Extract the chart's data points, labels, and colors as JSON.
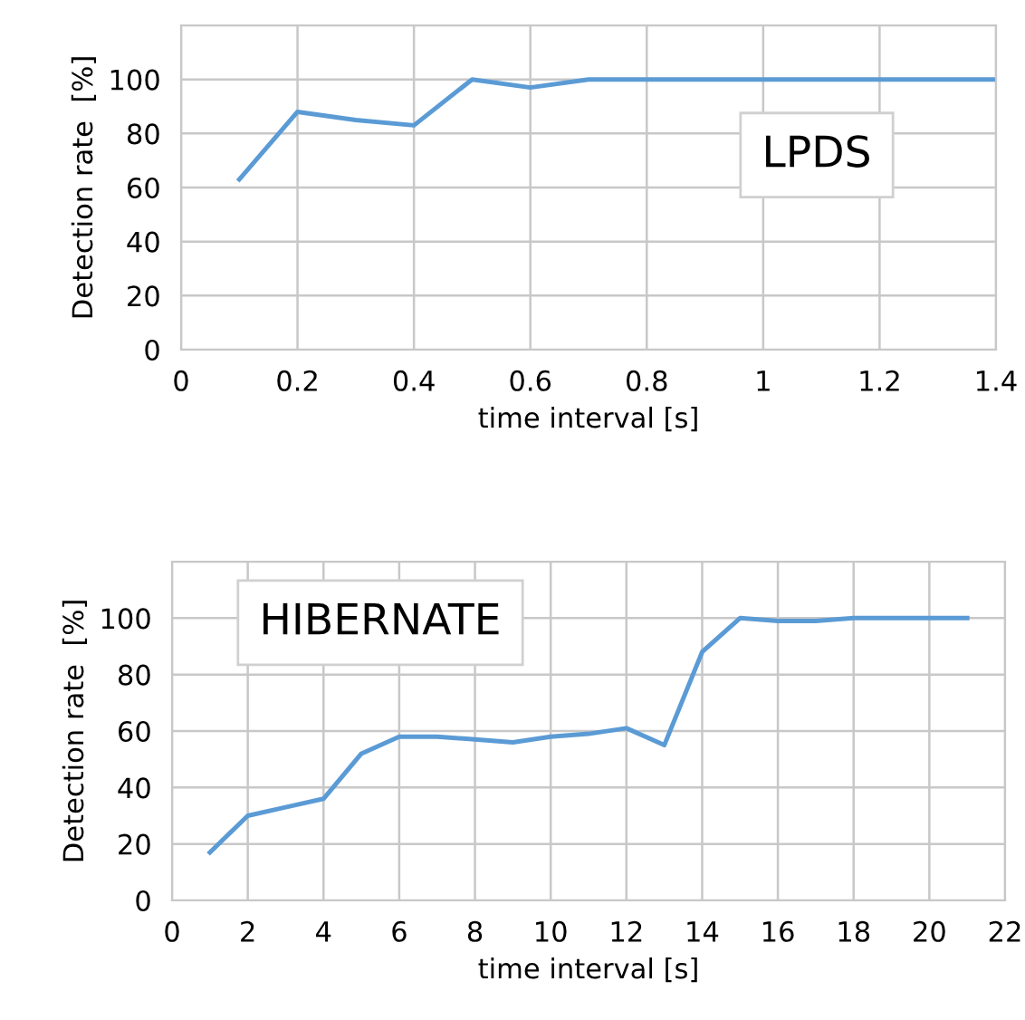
{
  "chart_data": [
    {
      "type": "line",
      "xlabel": "time interval [s]",
      "ylabel": "Detection rate  [%]",
      "annotations": [
        "LPDS"
      ],
      "x": [
        0.1,
        0.2,
        0.3,
        0.4,
        0.5,
        0.6,
        0.7,
        0.8,
        0.9,
        1.0,
        1.1,
        1.2,
        1.3,
        1.4
      ],
      "series": [
        {
          "color": "#5b9bd5",
          "values": [
            63,
            88,
            85,
            83,
            100,
            97,
            100,
            100,
            100,
            100,
            100,
            100,
            100,
            100
          ]
        }
      ],
      "xlim": [
        0,
        1.4
      ],
      "ylim": [
        0,
        120
      ],
      "xticks": [
        0,
        0.2,
        0.4,
        0.6,
        0.8,
        1,
        1.2,
        1.4
      ],
      "yticks": [
        0,
        20,
        40,
        60,
        80,
        100,
        {
          "value": 120,
          "label": null
        }
      ],
      "grid": true
    },
    {
      "type": "line",
      "xlabel": "time interval [s]",
      "ylabel": "Detection rate  [%]",
      "annotations": [
        "HIBERNATE"
      ],
      "x": [
        1,
        2,
        3,
        4,
        5,
        6,
        7,
        8,
        9,
        10,
        11,
        12,
        13,
        14,
        15,
        16,
        17,
        18,
        19,
        20,
        21
      ],
      "series": [
        {
          "color": "#5b9bd5",
          "values": [
            17,
            30,
            33,
            36,
            52,
            58,
            58,
            57,
            56,
            58,
            59,
            61,
            55,
            88,
            100,
            99,
            99,
            100,
            100,
            100,
            100
          ]
        }
      ],
      "xlim": [
        0,
        22
      ],
      "ylim": [
        0,
        120
      ],
      "xticks": [
        0,
        2,
        4,
        6,
        8,
        10,
        12,
        14,
        16,
        18,
        20,
        22
      ],
      "yticks": [
        0,
        20,
        40,
        60,
        80,
        100,
        {
          "value": 120,
          "label": null
        }
      ],
      "grid": true
    }
  ]
}
